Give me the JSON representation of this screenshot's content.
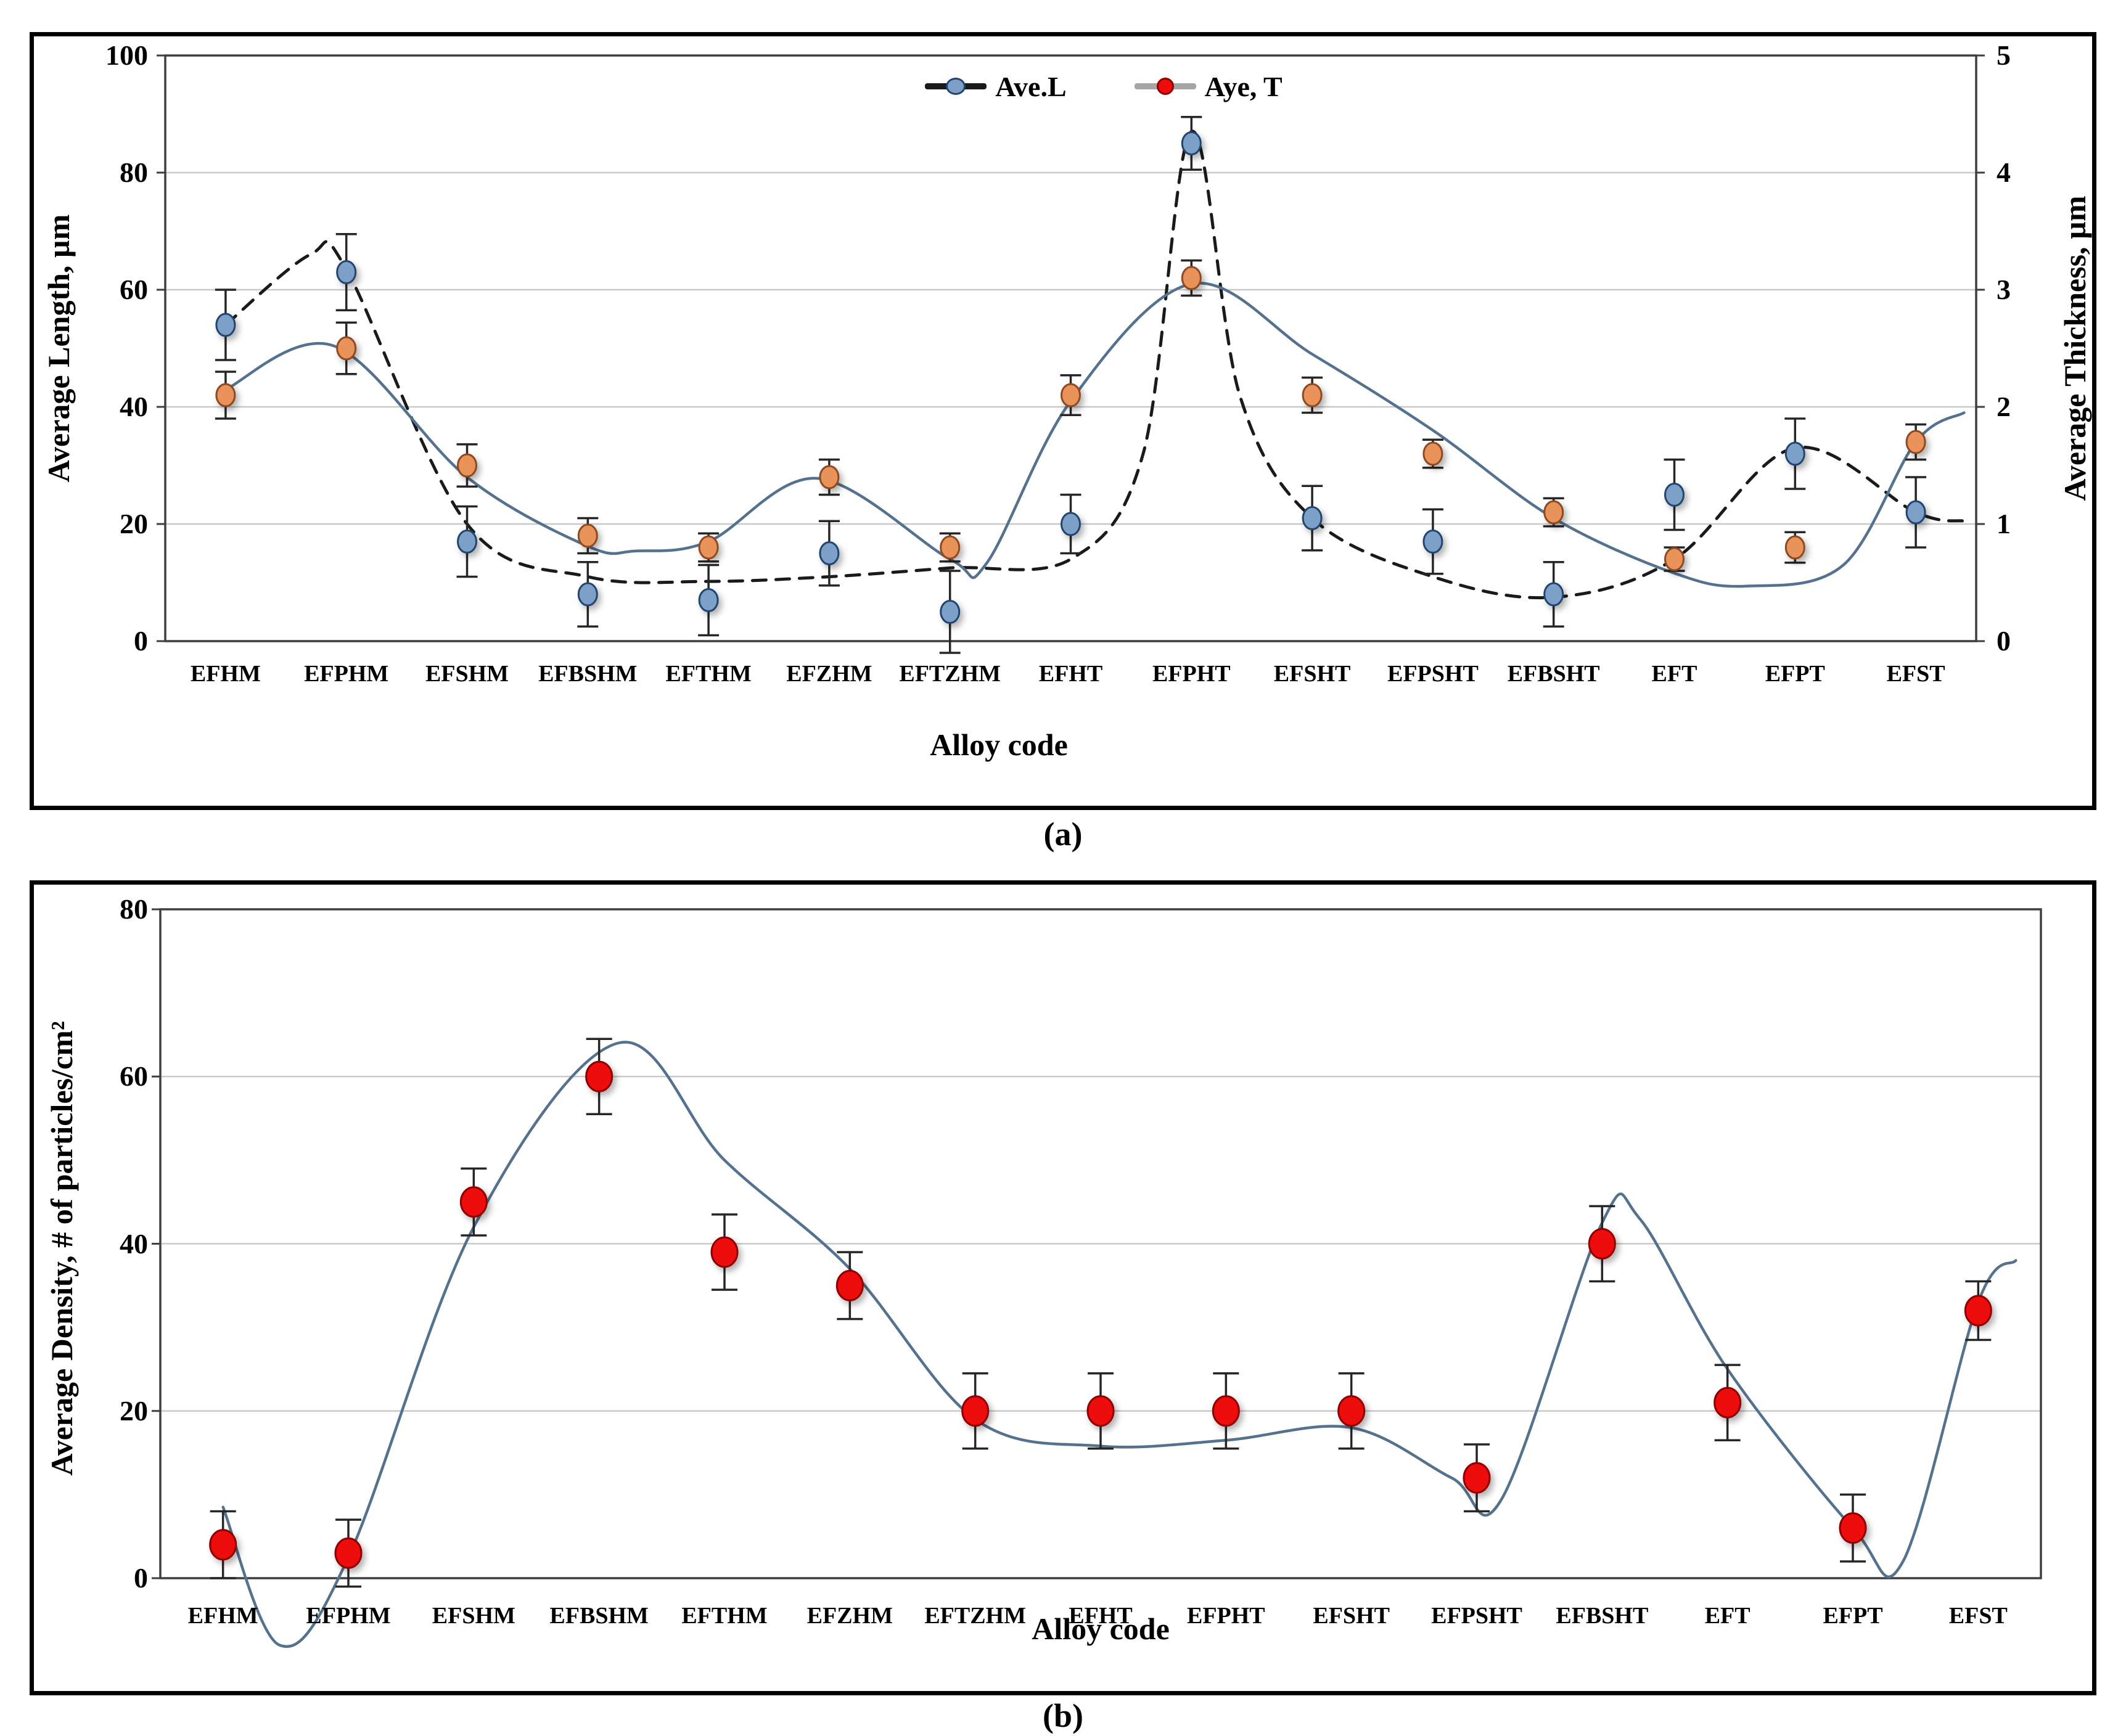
{
  "figure_captions": {
    "a": "(a)",
    "b": "(b)"
  },
  "colors": {
    "trend_solid": "#54728e",
    "trend_dashed": "#1a1a1a",
    "gridline": "#c9c9c9",
    "plot_border": "#3f3f3f",
    "error_bar": "#262626",
    "legend_line_black": "#1a1a1a",
    "legend_line_gray": "#a6a6a6",
    "marker_blue_fill": "#7da0c8",
    "marker_blue_stroke": "#24456e",
    "marker_orange_fill": "#e9935a",
    "marker_orange_stroke": "#8c4a21",
    "marker_red_fill": "#ee0c0c",
    "marker_red_stroke": "#8f0000"
  },
  "chart_data": [
    {
      "id": "a",
      "type": "scatter",
      "xlabel": "Alloy code",
      "ylabel_left": "Average Length, µm",
      "ylabel_right": "Average Thickness, µm",
      "ylim_left": [
        0,
        100
      ],
      "yticks_left": [
        0,
        20,
        40,
        60,
        80,
        100
      ],
      "ylim_right": [
        0,
        5
      ],
      "yticks_right": [
        0,
        1,
        2,
        3,
        4,
        5
      ],
      "grid": "horizontal",
      "legend_position": "top-center",
      "categories": [
        "EFHM",
        "EFPHM",
        "EFSHM",
        "EFBSHM",
        "EFTHM",
        "EFZHM",
        "EFTZHM",
        "EFHT",
        "EFPHT",
        "EFSHT",
        "EFPSHT",
        "EFBSHT",
        "EFT",
        "EFPT",
        "EFST"
      ],
      "series": [
        {
          "name": "Ave.L",
          "axis": "left",
          "marker": {
            "shape": "ellipse",
            "fill": "#7da0c8",
            "stroke": "#24456e"
          },
          "values": [
            54,
            63,
            17,
            8,
            7,
            15,
            5,
            20,
            85,
            21,
            17,
            8,
            25,
            32,
            22
          ],
          "errors": [
            6,
            6.5,
            6,
            5.5,
            6,
            5.5,
            7,
            5,
            4.5,
            5.5,
            5.5,
            5.5,
            6,
            6,
            6
          ],
          "trend": {
            "style": "dashed",
            "color": "#1a1a1a",
            "points": [
              [
                0,
                54
              ],
              [
                0.7,
                66
              ],
              [
                1,
                63.5
              ],
              [
                2,
                20
              ],
              [
                3,
                11
              ],
              [
                4,
                10.2
              ],
              [
                5,
                11
              ],
              [
                6,
                12.5
              ],
              [
                7,
                14
              ],
              [
                7.6,
                32
              ],
              [
                8,
                87
              ],
              [
                8.4,
                42
              ],
              [
                9,
                21
              ],
              [
                10,
                11
              ],
              [
                11,
                7.5
              ],
              [
                12,
                14
              ],
              [
                13,
                33
              ],
              [
                14,
                22
              ],
              [
                14.4,
                20.5
              ]
            ]
          }
        },
        {
          "name": "Aye, T",
          "axis": "right",
          "marker": {
            "shape": "ellipse",
            "fill": "#e9935a",
            "stroke": "#8c4a21"
          },
          "values": [
            2.1,
            2.5,
            1.5,
            0.9,
            0.8,
            1.4,
            0.8,
            2.1,
            3.1,
            2.1,
            1.6,
            1.1,
            0.7,
            0.8,
            1.7
          ],
          "errors": [
            0.2,
            0.22,
            0.18,
            0.15,
            0.12,
            0.15,
            0.12,
            0.17,
            0.15,
            0.15,
            0.12,
            0.12,
            0.1,
            0.13,
            0.15
          ],
          "trend": {
            "style": "solid",
            "color": "#54728e",
            "points": [
              [
                0,
                2.15
              ],
              [
                0.9,
                2.52
              ],
              [
                2,
                1.4
              ],
              [
                3,
                0.81
              ],
              [
                3.4,
                0.77
              ],
              [
                4,
                0.85
              ],
              [
                4.9,
                1.39
              ],
              [
                6,
                0.7
              ],
              [
                6.3,
                0.66
              ],
              [
                7,
                2.05
              ],
              [
                8,
                3.05
              ],
              [
                9,
                2.45
              ],
              [
                10,
                1.8
              ],
              [
                11,
                1.05
              ],
              [
                12,
                0.58
              ],
              [
                12.6,
                0.47
              ],
              [
                13.4,
                0.65
              ],
              [
                14,
                1.7
              ],
              [
                14.4,
                1.95
              ]
            ]
          }
        }
      ]
    },
    {
      "id": "b",
      "type": "scatter",
      "xlabel": "Alloy code",
      "ylabel_left": "Average Density, # of particles/cm²",
      "ylim_left": [
        0,
        80
      ],
      "yticks_left": [
        0,
        20,
        40,
        60,
        80
      ],
      "grid": "horizontal",
      "categories": [
        "EFHM",
        "EFPHM",
        "EFSHM",
        "EFBSHM",
        "EFTHM",
        "EFZHM",
        "EFTZHM",
        "EFHT",
        "EFPHT",
        "EFSHT",
        "EFPSHT",
        "EFBSHT",
        "EFT",
        "EFPT",
        "EFST"
      ],
      "series": [
        {
          "name": "Ave. Density",
          "axis": "left",
          "marker": {
            "shape": "ellipse",
            "fill": "#ee0c0c",
            "stroke": "#8f0000"
          },
          "values": [
            4,
            3,
            45,
            60,
            39,
            35,
            20,
            20,
            20,
            20,
            12,
            40,
            21,
            6,
            32
          ],
          "errors": [
            4,
            4,
            4,
            4.5,
            4.5,
            4,
            4.5,
            4.5,
            4.5,
            4.5,
            4,
            4.5,
            4.5,
            4,
            3.5
          ],
          "trend": {
            "style": "solid",
            "color": "#54728e",
            "points": [
              [
                0,
                8.5
              ],
              [
                0.45,
                -8
              ],
              [
                1,
                2.5
              ],
              [
                2,
                42
              ],
              [
                3.15,
                64
              ],
              [
                4,
                50
              ],
              [
                5,
                37
              ],
              [
                6,
                19
              ],
              [
                7,
                15.8
              ],
              [
                8,
                16.5
              ],
              [
                9,
                18
              ],
              [
                9.8,
                12
              ],
              [
                10.2,
                9.5
              ],
              [
                11,
                42.5
              ],
              [
                11.3,
                43
              ],
              [
                12,
                25
              ],
              [
                13,
                6
              ],
              [
                13.4,
                2
              ],
              [
                14,
                33
              ],
              [
                14.3,
                38
              ]
            ]
          }
        }
      ]
    }
  ]
}
